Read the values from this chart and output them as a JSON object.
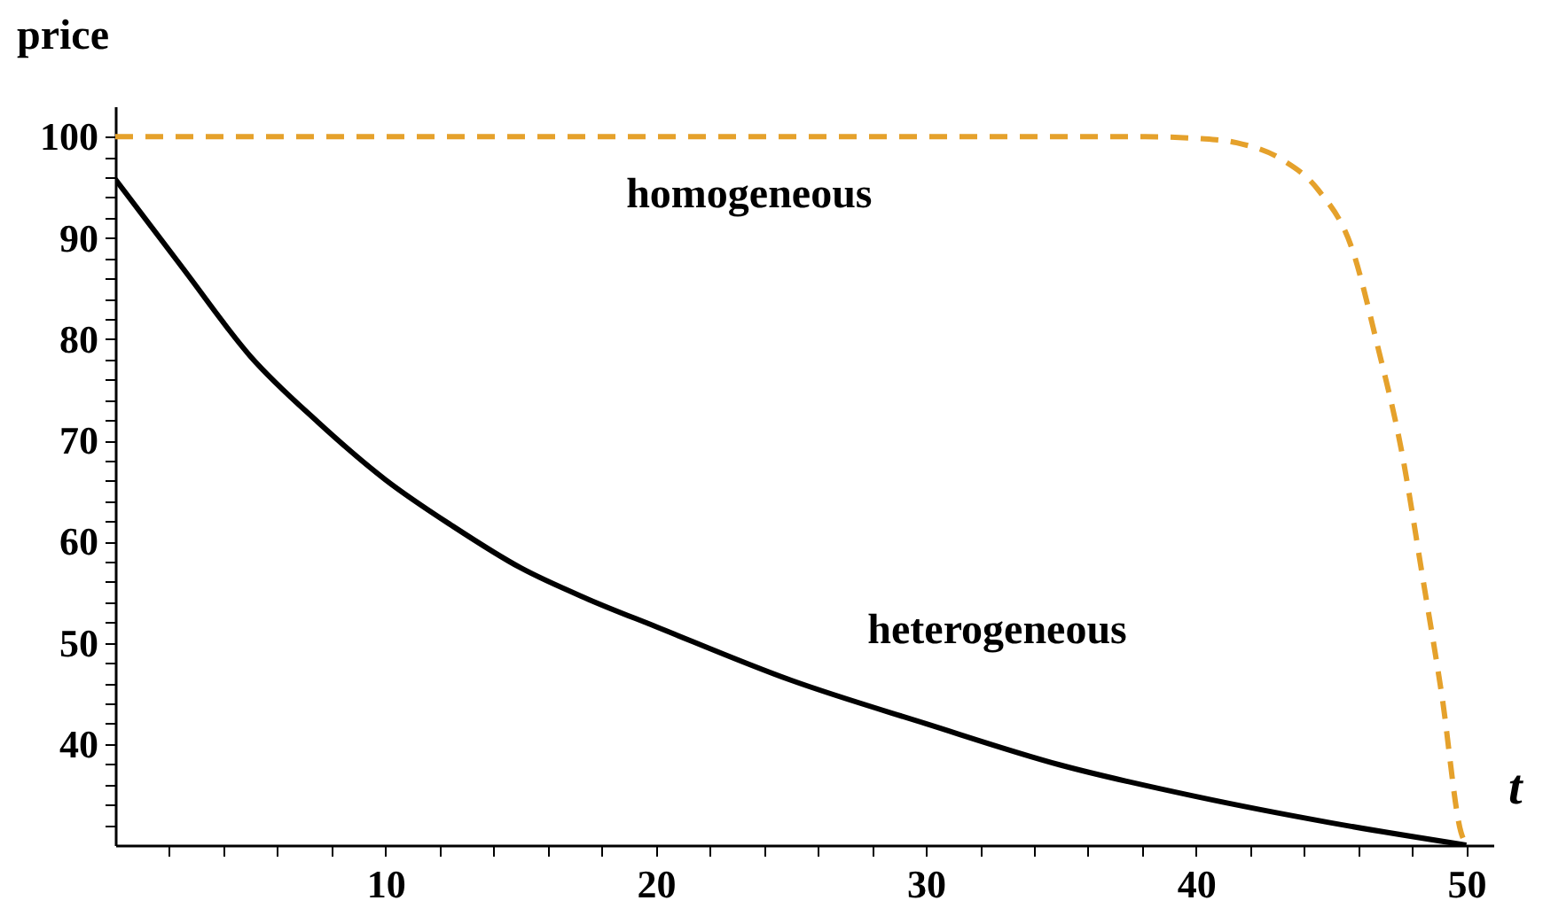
{
  "chart_data": {
    "type": "line",
    "xlabel": "t",
    "ylabel": "price",
    "xlim": [
      0,
      51
    ],
    "ylim": [
      30,
      103
    ],
    "xticks": [
      {
        "value": 2,
        "label": null
      },
      {
        "value": 4,
        "label": null
      },
      {
        "value": 6,
        "label": null
      },
      {
        "value": 8,
        "label": null
      },
      10,
      {
        "value": 12,
        "label": null
      },
      {
        "value": 14,
        "label": null
      },
      {
        "value": 16,
        "label": null
      },
      {
        "value": 18,
        "label": null
      },
      20,
      {
        "value": 22,
        "label": null
      },
      {
        "value": 24,
        "label": null
      },
      {
        "value": 26,
        "label": null
      },
      {
        "value": 28,
        "label": null
      },
      30,
      {
        "value": 32,
        "label": null
      },
      {
        "value": 34,
        "label": null
      },
      {
        "value": 36,
        "label": null
      },
      {
        "value": 38,
        "label": null
      },
      40,
      {
        "value": 42,
        "label": null
      },
      {
        "value": 44,
        "label": null
      },
      {
        "value": 46,
        "label": null
      },
      {
        "value": 48,
        "label": null
      },
      50
    ],
    "yticks": [
      {
        "value": 32,
        "label": null
      },
      {
        "value": 34,
        "label": null
      },
      {
        "value": 36,
        "label": null
      },
      {
        "value": 38,
        "label": null
      },
      40,
      {
        "value": 42,
        "label": null
      },
      {
        "value": 44,
        "label": null
      },
      {
        "value": 46,
        "label": null
      },
      {
        "value": 48,
        "label": null
      },
      50,
      {
        "value": 52,
        "label": null
      },
      {
        "value": 54,
        "label": null
      },
      {
        "value": 56,
        "label": null
      },
      {
        "value": 58,
        "label": null
      },
      60,
      {
        "value": 62,
        "label": null
      },
      {
        "value": 64,
        "label": null
      },
      {
        "value": 66,
        "label": null
      },
      {
        "value": 68,
        "label": null
      },
      70,
      {
        "value": 72,
        "label": null
      },
      {
        "value": 74,
        "label": null
      },
      {
        "value": 76,
        "label": null
      },
      {
        "value": 78,
        "label": null
      },
      80,
      {
        "value": 82,
        "label": null
      },
      {
        "value": 84,
        "label": null
      },
      {
        "value": 86,
        "label": null
      },
      {
        "value": 88,
        "label": null
      },
      90,
      {
        "value": 92,
        "label": null
      },
      {
        "value": 94,
        "label": null
      },
      {
        "value": 96,
        "label": null
      },
      {
        "value": 98,
        "label": null
      },
      100
    ],
    "series": [
      {
        "name": "homogeneous",
        "color": "#e5a12b",
        "line_style": "dashed",
        "x": [
          0,
          10,
          20,
          30,
          36,
          38,
          40.2,
          41.5,
          43.2,
          44.5,
          45.8,
          46.7,
          47.6,
          48.4,
          49.1,
          49.8,
          50
        ],
        "values": [
          100,
          100,
          100,
          100,
          100,
          100,
          99.8,
          99.4,
          97.7,
          94.8,
          88.7,
          79.5,
          69,
          56.2,
          44.7,
          31.3,
          30
        ]
      },
      {
        "name": "heterogeneous",
        "color": "#000000",
        "line_style": "solid",
        "x": [
          0,
          2.5,
          5,
          7.5,
          10,
          12.5,
          15,
          17.5,
          20,
          25,
          30,
          35,
          40,
          45,
          50
        ],
        "values": [
          95.8,
          87,
          78.3,
          71.8,
          66.1,
          61.5,
          57.4,
          54.3,
          51.6,
          46.3,
          42,
          37.9,
          34.8,
          32.2,
          30
        ]
      }
    ]
  }
}
